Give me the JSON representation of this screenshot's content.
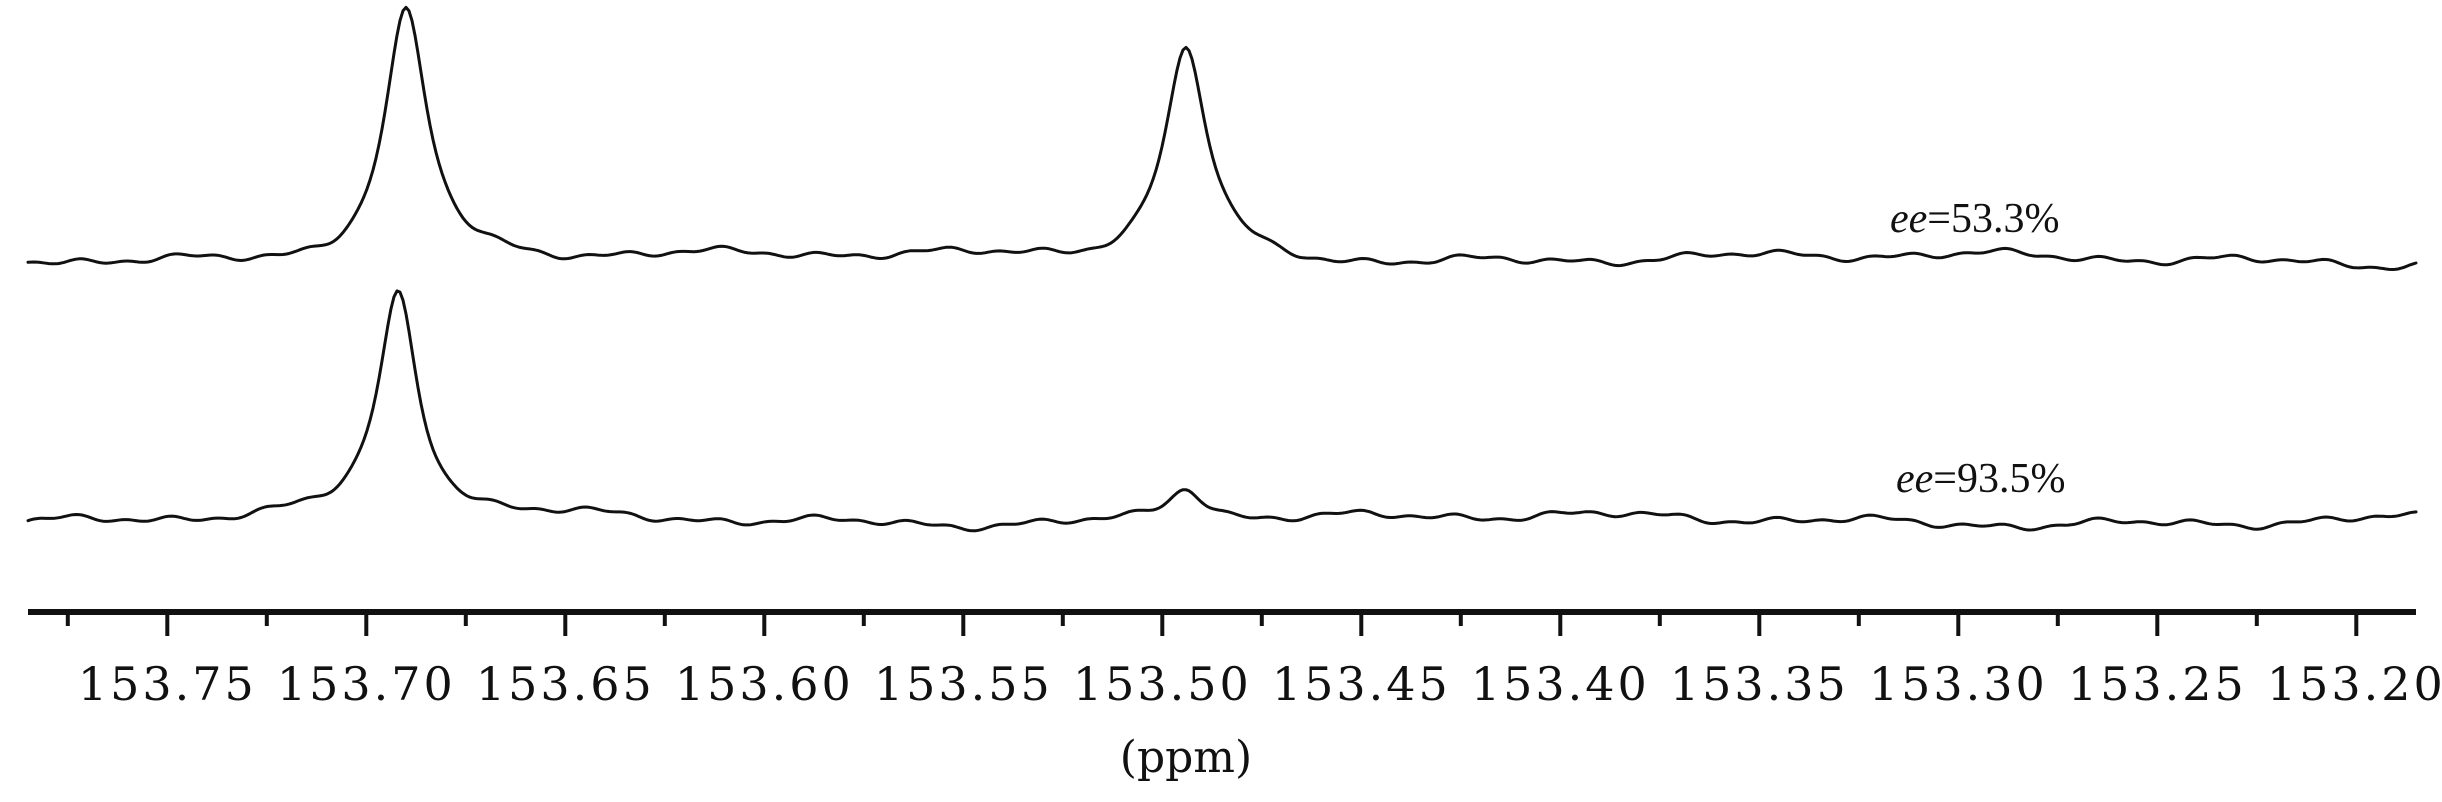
{
  "chart_data": {
    "type": "line",
    "xlabel": "(ppm)",
    "xlim": [
      153.785,
      153.185
    ],
    "x_reversed": true,
    "x_ticks": [
      153.75,
      153.7,
      153.65,
      153.6,
      153.55,
      153.5,
      153.45,
      153.4,
      153.35,
      153.3,
      153.25,
      153.2
    ],
    "x_tick_labels": [
      "153.75",
      "153.70",
      "153.65",
      "153.60",
      "153.55",
      "153.50",
      "153.45",
      "153.40",
      "153.35",
      "153.30",
      "153.25",
      "153.20"
    ],
    "grid": false,
    "series": [
      {
        "annotation": {
          "italic": "ee",
          "rest": "=53.3%"
        },
        "baseline": 0.05,
        "peaks": [
          {
            "ppm": 153.69,
            "height": 1.0
          },
          {
            "ppm": 153.494,
            "height": 0.85
          }
        ]
      },
      {
        "annotation": {
          "italic": "ee",
          "rest": "=93.5%"
        },
        "baseline": 0.0,
        "peaks": [
          {
            "ppm": 153.692,
            "height": 0.89
          },
          {
            "ppm": 153.494,
            "height": 0.14
          }
        ]
      }
    ]
  }
}
